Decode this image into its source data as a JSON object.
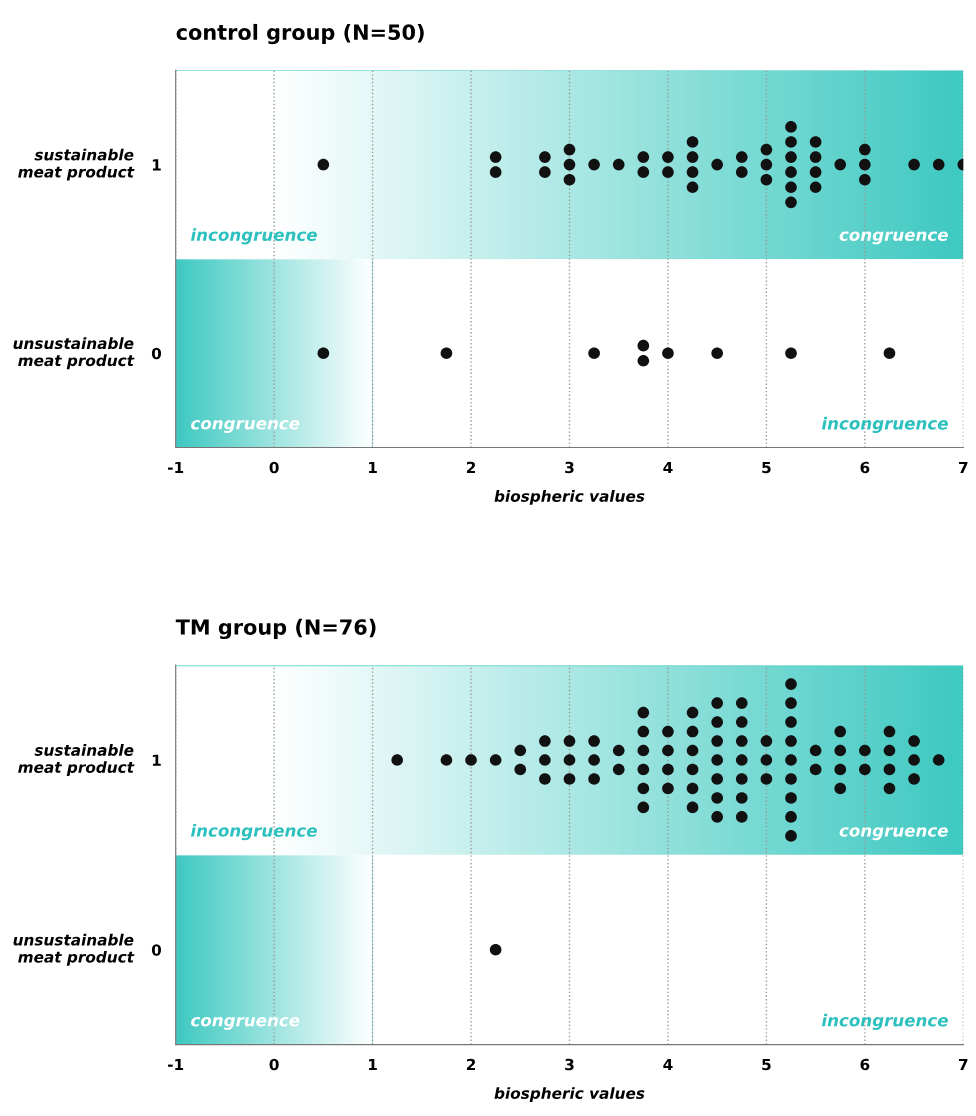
{
  "chart_data": [
    {
      "type": "scatter",
      "title": "control group (N=50)",
      "xlabel": "biospheric values",
      "xlim": [
        -1,
        7
      ],
      "xticks": [
        -1,
        0,
        1,
        2,
        3,
        4,
        5,
        6,
        7
      ],
      "ylim": [
        -0.5,
        1.5
      ],
      "yticks": [
        0,
        1
      ],
      "grid": "x",
      "marker": "circle",
      "legend": false,
      "bands": [
        {
          "axis": "y",
          "from": 0.5,
          "to": 1.5,
          "color": "#3ec9c1"
        },
        {
          "axis": "x",
          "from": -1,
          "to": 1,
          "color": "#3ec9c1"
        }
      ],
      "annotations": [
        "incongruence",
        "congruence",
        "congruence",
        "incongruence",
        "sustainable\nmeat product",
        "unsustainable\nmeat product"
      ],
      "series": [
        {
          "color": "#111111",
          "x": [
            0.5,
            2.25,
            2.25,
            2.75,
            2.75,
            3,
            3,
            3,
            3.25,
            3.5,
            3.75,
            3.75,
            4,
            4,
            4.25,
            4.25,
            4.25,
            4.25,
            4.5,
            4.75,
            4.75,
            5,
            5,
            5,
            5.25,
            5.25,
            5.25,
            5.25,
            5.25,
            5.25,
            5.5,
            5.5,
            5.5,
            5.5,
            5.75,
            6,
            6,
            6,
            6.5,
            6.75,
            7
          ],
          "values": [
            1,
            0.96,
            1.04,
            0.96,
            1.04,
            0.92,
            1,
            1.08,
            1,
            1,
            0.96,
            1.04,
            0.96,
            1.04,
            0.88,
            0.96,
            1.04,
            1.12,
            1,
            0.96,
            1.04,
            0.92,
            1,
            1.08,
            0.8,
            0.88,
            0.96,
            1.04,
            1.12,
            1.2,
            0.88,
            0.96,
            1.04,
            1.12,
            1,
            0.92,
            1,
            1.08,
            1,
            1,
            1
          ]
        },
        {
          "color": "#111111",
          "x": [
            0.5,
            1.75,
            3.25,
            3.75,
            3.75,
            4,
            4.5,
            5.25,
            6.25
          ],
          "values": [
            0,
            0,
            0,
            -0.04,
            0.04,
            0,
            0,
            0,
            0
          ]
        }
      ]
    },
    {
      "type": "scatter",
      "title": "TM group (N=76)",
      "xlabel": "biospheric values",
      "xlim": [
        -1,
        7
      ],
      "xticks": [
        -1,
        0,
        1,
        2,
        3,
        4,
        5,
        6,
        7
      ],
      "ylim": [
        -0.5,
        1.5
      ],
      "yticks": [
        0,
        1
      ],
      "grid": "x",
      "marker": "circle",
      "legend": false,
      "bands": [
        {
          "axis": "y",
          "from": 0.5,
          "to": 1.5,
          "color": "#3ec9c1"
        },
        {
          "axis": "x",
          "from": -1,
          "to": 1,
          "color": "#3ec9c1"
        }
      ],
      "annotations": [
        "incongruence",
        "congruence",
        "congruence",
        "incongruence",
        "sustainable\nmeat product",
        "unsustainable\nmeat product"
      ],
      "series": [
        {
          "color": "#111111",
          "x": [
            1.25,
            1.75,
            2,
            2.25,
            2.5,
            2.5,
            2.75,
            2.75,
            2.75,
            3,
            3,
            3,
            3.25,
            3.25,
            3.25,
            3.5,
            3.5,
            3.75,
            3.75,
            3.75,
            3.75,
            3.75,
            3.75,
            4,
            4,
            4,
            4,
            4.25,
            4.25,
            4.25,
            4.25,
            4.25,
            4.25,
            4.5,
            4.5,
            4.5,
            4.5,
            4.5,
            4.5,
            4.5,
            4.75,
            4.75,
            4.75,
            4.75,
            4.75,
            4.75,
            4.75,
            5,
            5,
            5,
            5.25,
            5.25,
            5.25,
            5.25,
            5.25,
            5.25,
            5.25,
            5.25,
            5.25,
            5.5,
            5.5,
            5.75,
            5.75,
            5.75,
            5.75,
            6,
            6,
            6.25,
            6.25,
            6.25,
            6.25,
            6.5,
            6.5,
            6.5,
            6.75
          ],
          "values": [
            1,
            1,
            1,
            1,
            0.95,
            1.05,
            0.9,
            1,
            1.1,
            0.9,
            1,
            1.1,
            0.9,
            1,
            1.1,
            0.95,
            1.05,
            0.75,
            0.85,
            0.95,
            1.05,
            1.15,
            1.25,
            0.85,
            0.95,
            1.05,
            1.15,
            0.75,
            0.85,
            0.95,
            1.05,
            1.15,
            1.25,
            0.7,
            0.8,
            0.9,
            1,
            1.1,
            1.2,
            1.3,
            0.7,
            0.8,
            0.9,
            1,
            1.1,
            1.2,
            1.3,
            0.9,
            1,
            1.1,
            0.6,
            0.7,
            0.8,
            0.9,
            1,
            1.1,
            1.2,
            1.3,
            1.4,
            0.95,
            1.05,
            0.85,
            0.95,
            1.05,
            1.15,
            0.95,
            1.05,
            0.85,
            0.95,
            1.05,
            1.15,
            0.9,
            1,
            1.1,
            1
          ]
        },
        {
          "color": "#111111",
          "x": [
            2.25
          ],
          "values": [
            0
          ]
        }
      ]
    }
  ]
}
